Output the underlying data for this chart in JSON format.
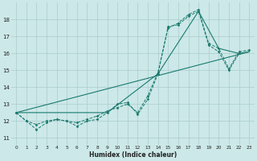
{
  "xlabel": "Humidex (Indice chaleur)",
  "bg_color": "#cce8e8",
  "grid_major_color": "#aacccc",
  "grid_minor_color": "#bbdddd",
  "line_color": "#1a7a6e",
  "xlim": [
    -0.5,
    23.5
  ],
  "ylim": [
    10.6,
    19.0
  ],
  "xticks": [
    0,
    1,
    2,
    3,
    4,
    5,
    6,
    7,
    8,
    9,
    10,
    11,
    12,
    13,
    14,
    15,
    16,
    17,
    18,
    19,
    20,
    21,
    22,
    23
  ],
  "yticks": [
    11,
    12,
    13,
    14,
    15,
    16,
    17,
    18
  ],
  "series1_x": [
    0,
    1,
    2,
    3,
    4,
    5,
    6,
    7,
    8,
    9,
    10,
    11,
    12,
    13,
    14,
    15,
    16,
    17,
    18,
    19,
    20,
    21,
    22
  ],
  "series1_y": [
    12.5,
    12.0,
    11.5,
    11.9,
    12.1,
    12.0,
    11.7,
    12.0,
    12.1,
    12.5,
    13.0,
    13.1,
    12.4,
    13.3,
    14.8,
    17.6,
    17.7,
    18.2,
    18.5,
    16.5,
    16.1,
    15.0,
    16.0
  ],
  "series2_x": [
    0,
    1,
    2,
    3,
    4,
    5,
    6,
    7,
    8,
    9,
    10,
    11,
    12,
    13,
    14,
    15,
    16,
    17,
    18,
    19,
    20,
    21,
    22,
    23
  ],
  "series2_y": [
    12.5,
    12.0,
    11.8,
    12.0,
    12.1,
    12.0,
    11.9,
    12.1,
    12.3,
    12.6,
    12.8,
    13.0,
    12.5,
    13.5,
    14.9,
    17.5,
    17.8,
    18.3,
    18.6,
    16.6,
    16.3,
    15.1,
    16.1,
    16.2
  ],
  "trend1_x": [
    0,
    23
  ],
  "trend1_y": [
    12.5,
    16.1
  ],
  "trend2_x": [
    0,
    9,
    14,
    18,
    20,
    22,
    23
  ],
  "trend2_y": [
    12.5,
    12.5,
    14.8,
    18.5,
    16.3,
    16.0,
    16.1
  ]
}
